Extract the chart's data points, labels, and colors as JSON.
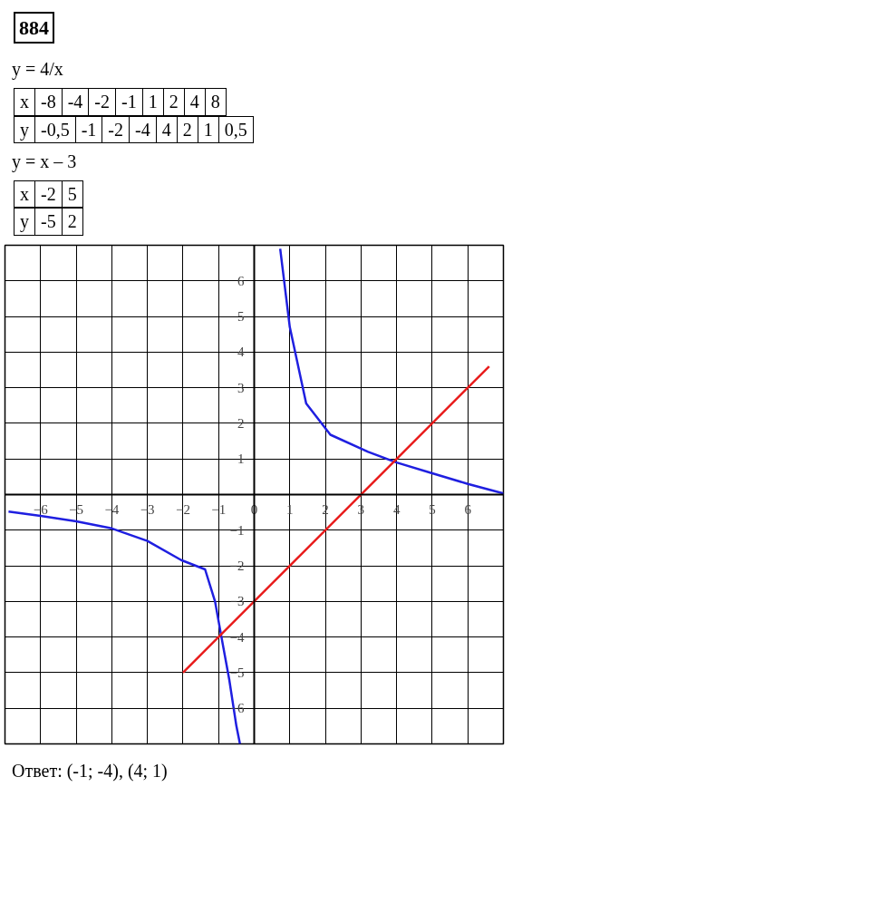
{
  "chart_data": {
    "type": "line",
    "title": "884",
    "annotations": [
      "y = 4/x",
      "x -8 -4 -2 -1 1 2 4 8",
      "y -0,5 -1 -2 -4 4 2 1 0,5",
      "y = x – 3",
      "x -2 5",
      "y -5 2",
      "Ответ: (-1; -4), (4; 1)"
    ],
    "series": [
      {
        "color": "#1f1fe0",
        "x": [
          -6.9,
          -6,
          -5,
          -4,
          -3,
          -2.05,
          -1.38,
          -1.1,
          -0.92,
          -0.7,
          -0.5,
          -0.4
        ],
        "values": [
          -0.48,
          -0.6,
          -0.75,
          -0.95,
          -1.3,
          -1.84,
          -2.1,
          -3,
          -4,
          -5.2,
          -6.5,
          -7
        ]
      },
      {
        "color": "#1f1fe0",
        "x": [
          0.73,
          1.0,
          1.46,
          2.14,
          3.2,
          4,
          5,
          6,
          7
        ],
        "values": [
          6.9,
          4.7,
          2.56,
          1.68,
          1.2,
          0.9,
          0.6,
          0.3,
          0.03
        ]
      },
      {
        "color": "#e81c1c",
        "x": [
          -2,
          6.6
        ],
        "values": [
          -5,
          3.6
        ]
      }
    ],
    "xlim": [
      -7,
      7
    ],
    "ylim": [
      -7,
      7
    ],
    "xticks": [
      -6,
      -5,
      -4,
      -3,
      -2,
      -1,
      0,
      1,
      2,
      3,
      4,
      5,
      6
    ],
    "yticks": [
      -6,
      -5,
      -4,
      -3,
      -2,
      -1,
      1,
      2,
      3,
      4,
      5,
      6
    ],
    "grid": true,
    "marker": "none",
    "line_style": "solid"
  }
}
